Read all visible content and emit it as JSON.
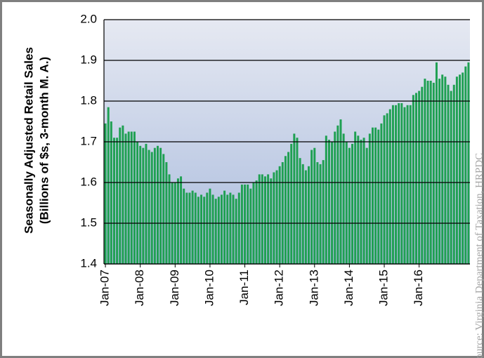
{
  "chart_data": {
    "type": "bar",
    "ylabel": [
      "Seasonally Adjusted Retail Sales",
      "(Billions of $s, 3-month M. A.)"
    ],
    "source": "Source: Virginia Department of Taxation, HRPDC",
    "categories": [
      "Jan-07",
      null,
      null,
      null,
      null,
      null,
      null,
      null,
      null,
      null,
      null,
      null,
      "Jan-08",
      null,
      null,
      null,
      null,
      null,
      null,
      null,
      null,
      null,
      null,
      null,
      "Jan-09",
      null,
      null,
      null,
      null,
      null,
      null,
      null,
      null,
      null,
      null,
      null,
      "Jan-10",
      null,
      null,
      null,
      null,
      null,
      null,
      null,
      null,
      null,
      null,
      null,
      "Jan-11",
      null,
      null,
      null,
      null,
      null,
      null,
      null,
      null,
      null,
      null,
      null,
      "Jan-12",
      null,
      null,
      null,
      null,
      null,
      null,
      null,
      null,
      null,
      null,
      null,
      "Jan-13",
      null,
      null,
      null,
      null,
      null,
      null,
      null,
      null,
      null,
      null,
      null,
      "Jan-14",
      null,
      null,
      null,
      null,
      null,
      null,
      null,
      null,
      null,
      null,
      null,
      "Jan-15",
      null,
      null,
      null,
      null,
      null,
      null,
      null,
      null,
      null,
      null,
      null,
      "Jan-16",
      null,
      null,
      null,
      null,
      null,
      null,
      null,
      null,
      null,
      null,
      null,
      null,
      null,
      null,
      null,
      null,
      null
    ],
    "values": [
      1.745,
      1.785,
      1.75,
      1.71,
      1.71,
      1.735,
      1.74,
      1.72,
      1.725,
      1.725,
      1.725,
      1.7,
      1.69,
      1.685,
      1.695,
      1.68,
      1.675,
      1.685,
      1.69,
      1.685,
      1.67,
      1.65,
      1.62,
      1.6,
      1.6,
      1.61,
      1.615,
      1.585,
      1.575,
      1.575,
      1.58,
      1.575,
      1.565,
      1.57,
      1.565,
      1.575,
      1.585,
      1.57,
      1.56,
      1.565,
      1.57,
      1.58,
      1.57,
      1.575,
      1.57,
      1.56,
      1.575,
      1.595,
      1.595,
      1.595,
      1.585,
      1.6,
      1.605,
      1.62,
      1.62,
      1.615,
      1.62,
      1.61,
      1.625,
      1.63,
      1.64,
      1.65,
      1.665,
      1.675,
      1.695,
      1.72,
      1.71,
      1.66,
      1.645,
      1.63,
      1.64,
      1.68,
      1.685,
      1.65,
      1.645,
      1.655,
      1.715,
      1.705,
      1.7,
      1.725,
      1.74,
      1.755,
      1.72,
      1.7,
      1.685,
      1.695,
      1.725,
      1.715,
      1.705,
      1.71,
      1.685,
      1.72,
      1.735,
      1.735,
      1.73,
      1.745,
      1.765,
      1.77,
      1.78,
      1.79,
      1.79,
      1.795,
      1.795,
      1.785,
      1.79,
      1.79,
      1.815,
      1.82,
      1.825,
      1.835,
      1.855,
      1.85,
      1.85,
      1.845,
      1.895,
      1.855,
      1.865,
      1.86,
      1.84,
      1.825,
      1.84,
      1.86,
      1.865,
      1.87,
      1.885,
      1.895
    ],
    "color": "#1fa052",
    "ylim": [
      1.4,
      2.0
    ],
    "yticks": [
      1.4,
      1.5,
      1.6,
      1.7,
      1.8,
      1.9,
      {
        "value": 2.0,
        "label": "2.0"
      }
    ],
    "grid": true
  }
}
